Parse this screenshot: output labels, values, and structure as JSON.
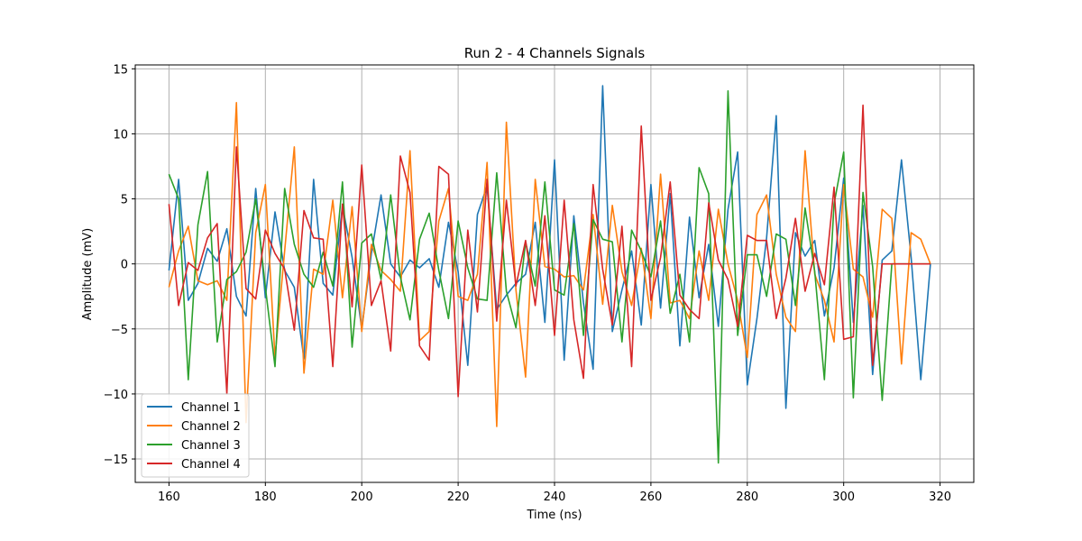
{
  "chart_data": {
    "type": "line",
    "title": "Run 2 - 4 Channels Signals",
    "xlabel": "Time (ns)",
    "ylabel": "Amplitude (mV)",
    "xlim": [
      153,
      327
    ],
    "ylim": [
      -16.8,
      15.3
    ],
    "xticks": [
      160,
      180,
      200,
      220,
      240,
      260,
      280,
      300,
      320
    ],
    "yticks": [
      -15,
      -10,
      -5,
      0,
      5,
      10,
      15
    ],
    "grid": true,
    "legend": "bottom-left",
    "x": [
      160,
      162,
      164,
      166,
      168,
      170,
      172,
      174,
      176,
      178,
      180,
      182,
      184,
      186,
      188,
      190,
      192,
      194,
      196,
      198,
      200,
      202,
      204,
      206,
      208,
      210,
      212,
      214,
      216,
      218,
      220,
      222,
      224,
      226,
      228,
      230,
      232,
      234,
      236,
      238,
      240,
      242,
      244,
      246,
      248,
      250,
      252,
      254,
      256,
      258,
      260,
      262,
      264,
      266,
      268,
      270,
      272,
      274,
      276,
      278,
      280,
      282,
      284,
      286,
      288,
      290,
      292,
      294,
      296,
      298,
      300,
      302,
      304,
      306,
      308,
      310,
      312,
      314,
      316,
      318
    ],
    "series": [
      {
        "name": "Channel 1",
        "color": "#1f77b4",
        "values": [
          -0.5,
          6.5,
          -2.8,
          -1.5,
          1.2,
          0.2,
          2.7,
          -2.5,
          -4.0,
          5.8,
          -2.6,
          4.0,
          -0.5,
          -1.8,
          -7.3,
          6.5,
          -1.5,
          -2.4,
          4.5,
          0.5,
          -5.0,
          0.8,
          5.3,
          0.0,
          -1.0,
          0.3,
          -0.3,
          0.4,
          -1.8,
          3.2,
          -0.6,
          -7.8,
          3.8,
          6.0,
          -3.5,
          -2.4,
          -1.5,
          -0.8,
          3.2,
          -4.5,
          8.0,
          -7.4,
          3.7,
          -3.0,
          -8.1,
          13.7,
          -5.2,
          -2.0,
          1.0,
          -4.7,
          6.1,
          -3.4,
          5.4,
          -6.3,
          3.6,
          -2.6,
          1.5,
          -4.8,
          4.2,
          8.6,
          -9.3,
          -4.2,
          2.0,
          11.4,
          -11.1,
          2.4,
          0.6,
          1.8,
          -4.0,
          -0.3,
          6.6,
          -4.5,
          4.5,
          -8.5,
          0.3,
          1.0,
          8.0,
          0.5,
          -8.9,
          0.0
        ]
      },
      {
        "name": "Channel 2",
        "color": "#ff7f0e",
        "values": [
          -1.8,
          1.0,
          2.9,
          -1.3,
          -1.6,
          -1.3,
          -2.8,
          12.4,
          -12.2,
          2.4,
          6.1,
          -7.2,
          1.0,
          9.0,
          -8.4,
          -0.4,
          -0.8,
          4.9,
          -2.6,
          4.4,
          -5.2,
          1.5,
          -0.5,
          -1.2,
          -2.1,
          8.7,
          -5.9,
          -5.2,
          3.3,
          5.8,
          -2.5,
          -2.8,
          -0.8,
          7.8,
          -12.5,
          10.9,
          -2.0,
          -8.7,
          6.5,
          -0.2,
          -0.4,
          -1.0,
          -0.9,
          -2.0,
          3.8,
          -3.1,
          4.5,
          -0.6,
          -3.2,
          1.2,
          -4.2,
          6.9,
          -3.0,
          -2.8,
          -4.2,
          1.0,
          -2.8,
          4.2,
          0.0,
          -2.8,
          -7.2,
          3.8,
          5.3,
          -0.8,
          -4.1,
          -5.2,
          8.7,
          -0.8,
          -2.8,
          -6.0,
          6.1,
          -0.4,
          -1.0,
          -4.1,
          4.2,
          3.5,
          -7.7,
          2.4,
          1.9,
          0.0
        ]
      },
      {
        "name": "Channel 3",
        "color": "#2ca02c",
        "values": [
          6.9,
          5.0,
          -8.9,
          3.0,
          7.1,
          -6.0,
          -1.2,
          -0.6,
          0.9,
          5.0,
          -1.8,
          -7.9,
          5.8,
          1.5,
          -0.8,
          -1.8,
          0.9,
          -1.7,
          6.3,
          -6.4,
          1.6,
          2.3,
          -1.2,
          5.3,
          -1.0,
          -4.3,
          1.9,
          3.9,
          -0.5,
          -4.2,
          3.3,
          -0.3,
          -2.7,
          -2.8,
          7.0,
          -2.1,
          -4.9,
          1.7,
          -1.7,
          6.3,
          -2.0,
          -2.4,
          3.1,
          -5.5,
          3.4,
          1.9,
          1.7,
          -6.0,
          2.6,
          1.0,
          -1.0,
          3.3,
          -3.8,
          -0.8,
          -6.0,
          7.4,
          5.4,
          -15.3,
          13.3,
          -5.5,
          0.7,
          0.7,
          -2.5,
          2.3,
          1.9,
          -3.2,
          4.3,
          -0.6,
          -8.9,
          4.6,
          8.6,
          -10.3,
          5.5,
          -0.2,
          -10.5,
          0.0,
          0.0,
          0.0,
          0.0,
          0.0
        ]
      },
      {
        "name": "Channel 4",
        "color": "#d62728",
        "values": [
          4.6,
          -3.2,
          0.1,
          -0.5,
          2.0,
          3.1,
          -10.0,
          9.0,
          -1.9,
          -2.7,
          2.6,
          0.8,
          -0.4,
          -5.1,
          4.1,
          2.0,
          1.9,
          -7.9,
          4.6,
          -3.3,
          7.6,
          -3.2,
          -1.3,
          -6.7,
          8.3,
          5.5,
          -6.3,
          -7.4,
          7.5,
          6.9,
          -10.2,
          2.6,
          -3.7,
          6.5,
          -4.4,
          4.9,
          -1.7,
          1.8,
          -3.2,
          3.7,
          -5.5,
          4.9,
          -4.3,
          -8.8,
          6.1,
          -0.4,
          -4.7,
          2.9,
          -7.9,
          10.6,
          -2.8,
          0.5,
          6.3,
          -2.4,
          -3.5,
          -4.2,
          4.7,
          0.3,
          -1.2,
          -4.8,
          2.2,
          1.8,
          1.8,
          -4.2,
          -1.1,
          3.5,
          -2.1,
          0.8,
          -1.6,
          5.9,
          -5.8,
          -5.6,
          12.2,
          -7.8,
          0.0,
          0.0,
          0.0,
          0.0,
          0.0,
          0.0
        ]
      }
    ]
  }
}
